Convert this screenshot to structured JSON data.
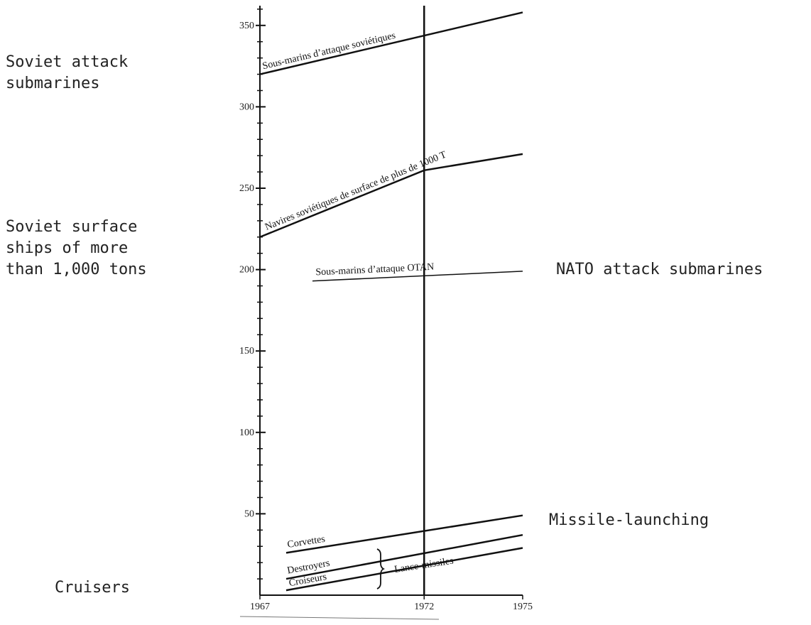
{
  "annotations": {
    "soviet_subs": "Soviet attack\nsubmarines",
    "soviet_surface": "Soviet surface\nships of more\nthan 1,000 tons",
    "nato_subs": "NATO attack submarines",
    "missile": "Missile-launching",
    "cruisers": "Cruisers"
  },
  "chart_data": {
    "type": "line",
    "xlim": [
      1967,
      1975
    ],
    "ylim": [
      0,
      360
    ],
    "x_ticks": [
      1967,
      1972,
      1975
    ],
    "x_tick_labels": [
      "1967",
      "1972",
      "1975"
    ],
    "y_ticks": [
      50,
      100,
      150,
      200,
      250,
      300,
      350
    ],
    "y_tick_labels": [
      "50",
      "100",
      "150",
      "200",
      "250",
      "300",
      "350"
    ],
    "reference_line_x": 1972,
    "bracket_label": "Lance-missiles",
    "series": [
      {
        "name": "Sous-marins d’attaque soviétiques",
        "x": [
          1967,
          1975
        ],
        "y": [
          320,
          358
        ]
      },
      {
        "name": "Navires soviétiques de surface de plus de 1000 T",
        "x": [
          1967,
          1972,
          1975
        ],
        "y": [
          220,
          261,
          271
        ]
      },
      {
        "name": "Sous-marins d’attaque OTAN",
        "x": [
          1968.6,
          1975
        ],
        "y": [
          193,
          199
        ]
      },
      {
        "name": "Corvettes",
        "x": [
          1967.8,
          1975
        ],
        "y": [
          26,
          49
        ]
      },
      {
        "name": "Destroyers",
        "x": [
          1967.8,
          1975
        ],
        "y": [
          10,
          37
        ]
      },
      {
        "name": "Croiseurs",
        "x": [
          1967.8,
          1975
        ],
        "y": [
          3,
          29
        ]
      }
    ]
  }
}
